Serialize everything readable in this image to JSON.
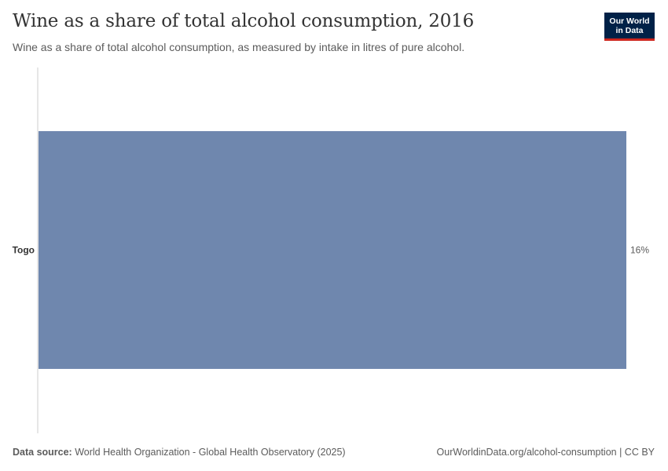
{
  "header": {
    "title": "Wine as a share of total alcohol consumption, 2016",
    "subtitle": "Wine as a share of total alcohol consumption, as measured by intake in litres of pure alcohol."
  },
  "logo": {
    "line1": "Our World",
    "line2": "in Data"
  },
  "footer": {
    "source_label": "Data source:",
    "source_text": "World Health Organization - Global Health Observatory (2025)",
    "url_text": "OurWorldinData.org/alcohol-consumption | CC BY"
  },
  "colors": {
    "bar": "#6f87ae",
    "axis": "#cccccc",
    "logo_bg": "#002147",
    "logo_accent": "#ce261e"
  },
  "chart_data": {
    "type": "bar",
    "orientation": "horizontal",
    "title": "Wine as a share of total alcohol consumption, 2016",
    "categories": [
      "Togo"
    ],
    "values": [
      16
    ],
    "value_labels": [
      "16%"
    ],
    "unit": "%",
    "xlim": [
      0,
      16
    ]
  }
}
